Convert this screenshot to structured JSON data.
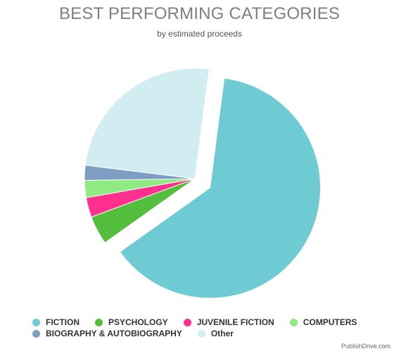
{
  "chart_data": {
    "type": "pie",
    "title": "BEST PERFORMING CATEGORIES",
    "subtitle": "by estimated proceeds",
    "slices": [
      {
        "label": "FICTION",
        "value": 63.1,
        "color": "#6ecbd4",
        "exploded": true
      },
      {
        "label": "PSYCHOLOGY",
        "value": 4.2,
        "color": "#54bf3e",
        "exploded": false
      },
      {
        "label": "JUVENILE FICTION",
        "value": 2.9,
        "color": "#ff2f8e",
        "exploded": false
      },
      {
        "label": "COMPUTERS",
        "value": 2.5,
        "color": "#90ea83",
        "exploded": false
      },
      {
        "label": "BIOGRAPHY & AUTOBIOGRAPHY",
        "value": 2.2,
        "color": "#7e9dc2",
        "exploded": false
      },
      {
        "label": "Other",
        "value": 25.1,
        "color": "#d1edf2",
        "exploded": false
      }
    ],
    "legend_position": "bottom-left"
  },
  "credit": "PublishDrive.com"
}
